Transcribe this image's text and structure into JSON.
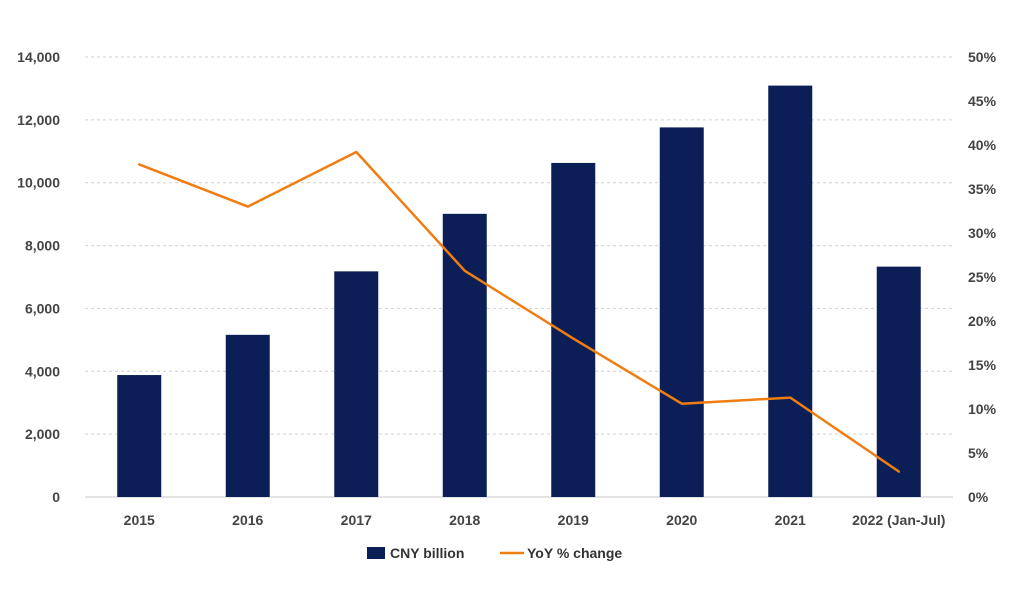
{
  "chart_data": {
    "type": "bar",
    "title": "",
    "xlabel": "",
    "ylabel": "",
    "categories": [
      "2015",
      "2016",
      "2017",
      "2018",
      "2019",
      "2020",
      "2021",
      "2022 (Jan-Jul)"
    ],
    "series": [
      {
        "name": "CNY billion",
        "type": "bar",
        "axis": "left",
        "color": "#0b1f56",
        "values": [
          3880,
          5160,
          7180,
          9010,
          10630,
          11760,
          13090,
          7330
        ]
      },
      {
        "name": "YoY % change",
        "type": "line",
        "axis": "right",
        "color": "#f07d12",
        "values": [
          37.8,
          33.0,
          39.2,
          25.7,
          18.0,
          10.6,
          11.3,
          2.9
        ]
      }
    ],
    "y_left": {
      "min": 0,
      "max": 14000,
      "ticks": [
        0,
        2000,
        4000,
        6000,
        8000,
        10000,
        12000,
        14000
      ],
      "tick_labels": [
        "0",
        "2,000",
        "4,000",
        "6,000",
        "8,000",
        "10,000",
        "12,000",
        "14,000"
      ]
    },
    "y_right": {
      "min": 0,
      "max": 50,
      "ticks": [
        0,
        5,
        10,
        15,
        20,
        25,
        30,
        35,
        40,
        45,
        50
      ],
      "tick_labels": [
        "0%",
        "5%",
        "10%",
        "15%",
        "20%",
        "25%",
        "30%",
        "35%",
        "40%",
        "45%",
        "50%"
      ]
    },
    "grid": true,
    "legend_position": "bottom-center"
  }
}
